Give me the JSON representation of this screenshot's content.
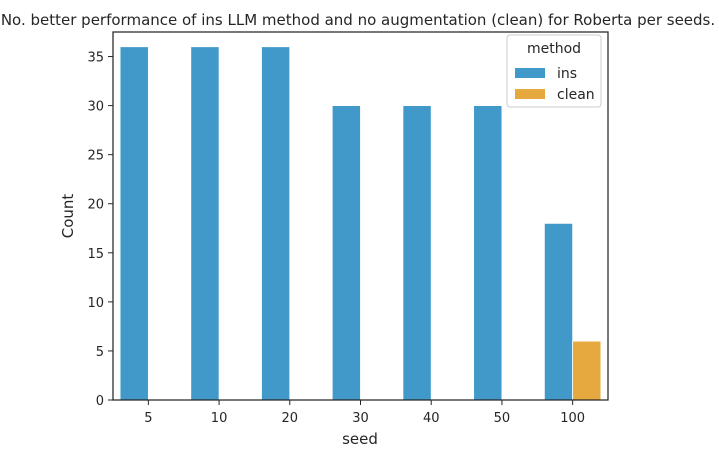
{
  "chart_data": {
    "type": "bar",
    "title": "No. better performance of ins LLM method and no augmentation (clean) for Roberta per seeds.",
    "xlabel": "seed",
    "ylabel": "Count",
    "categories": [
      "5",
      "10",
      "20",
      "30",
      "40",
      "50",
      "100"
    ],
    "series": [
      {
        "name": "ins",
        "color": "#4199c9",
        "values": [
          36,
          36,
          36,
          30,
          30,
          30,
          18
        ]
      },
      {
        "name": "clean",
        "color": "#e6a93f",
        "values": [
          0,
          0,
          0,
          0,
          0,
          0,
          6
        ]
      }
    ],
    "ylim": [
      0,
      37.5
    ],
    "yticks": [
      0,
      5,
      10,
      15,
      20,
      25,
      30,
      35
    ],
    "legend": {
      "title": "method",
      "position": "top-right"
    },
    "grid": false
  }
}
